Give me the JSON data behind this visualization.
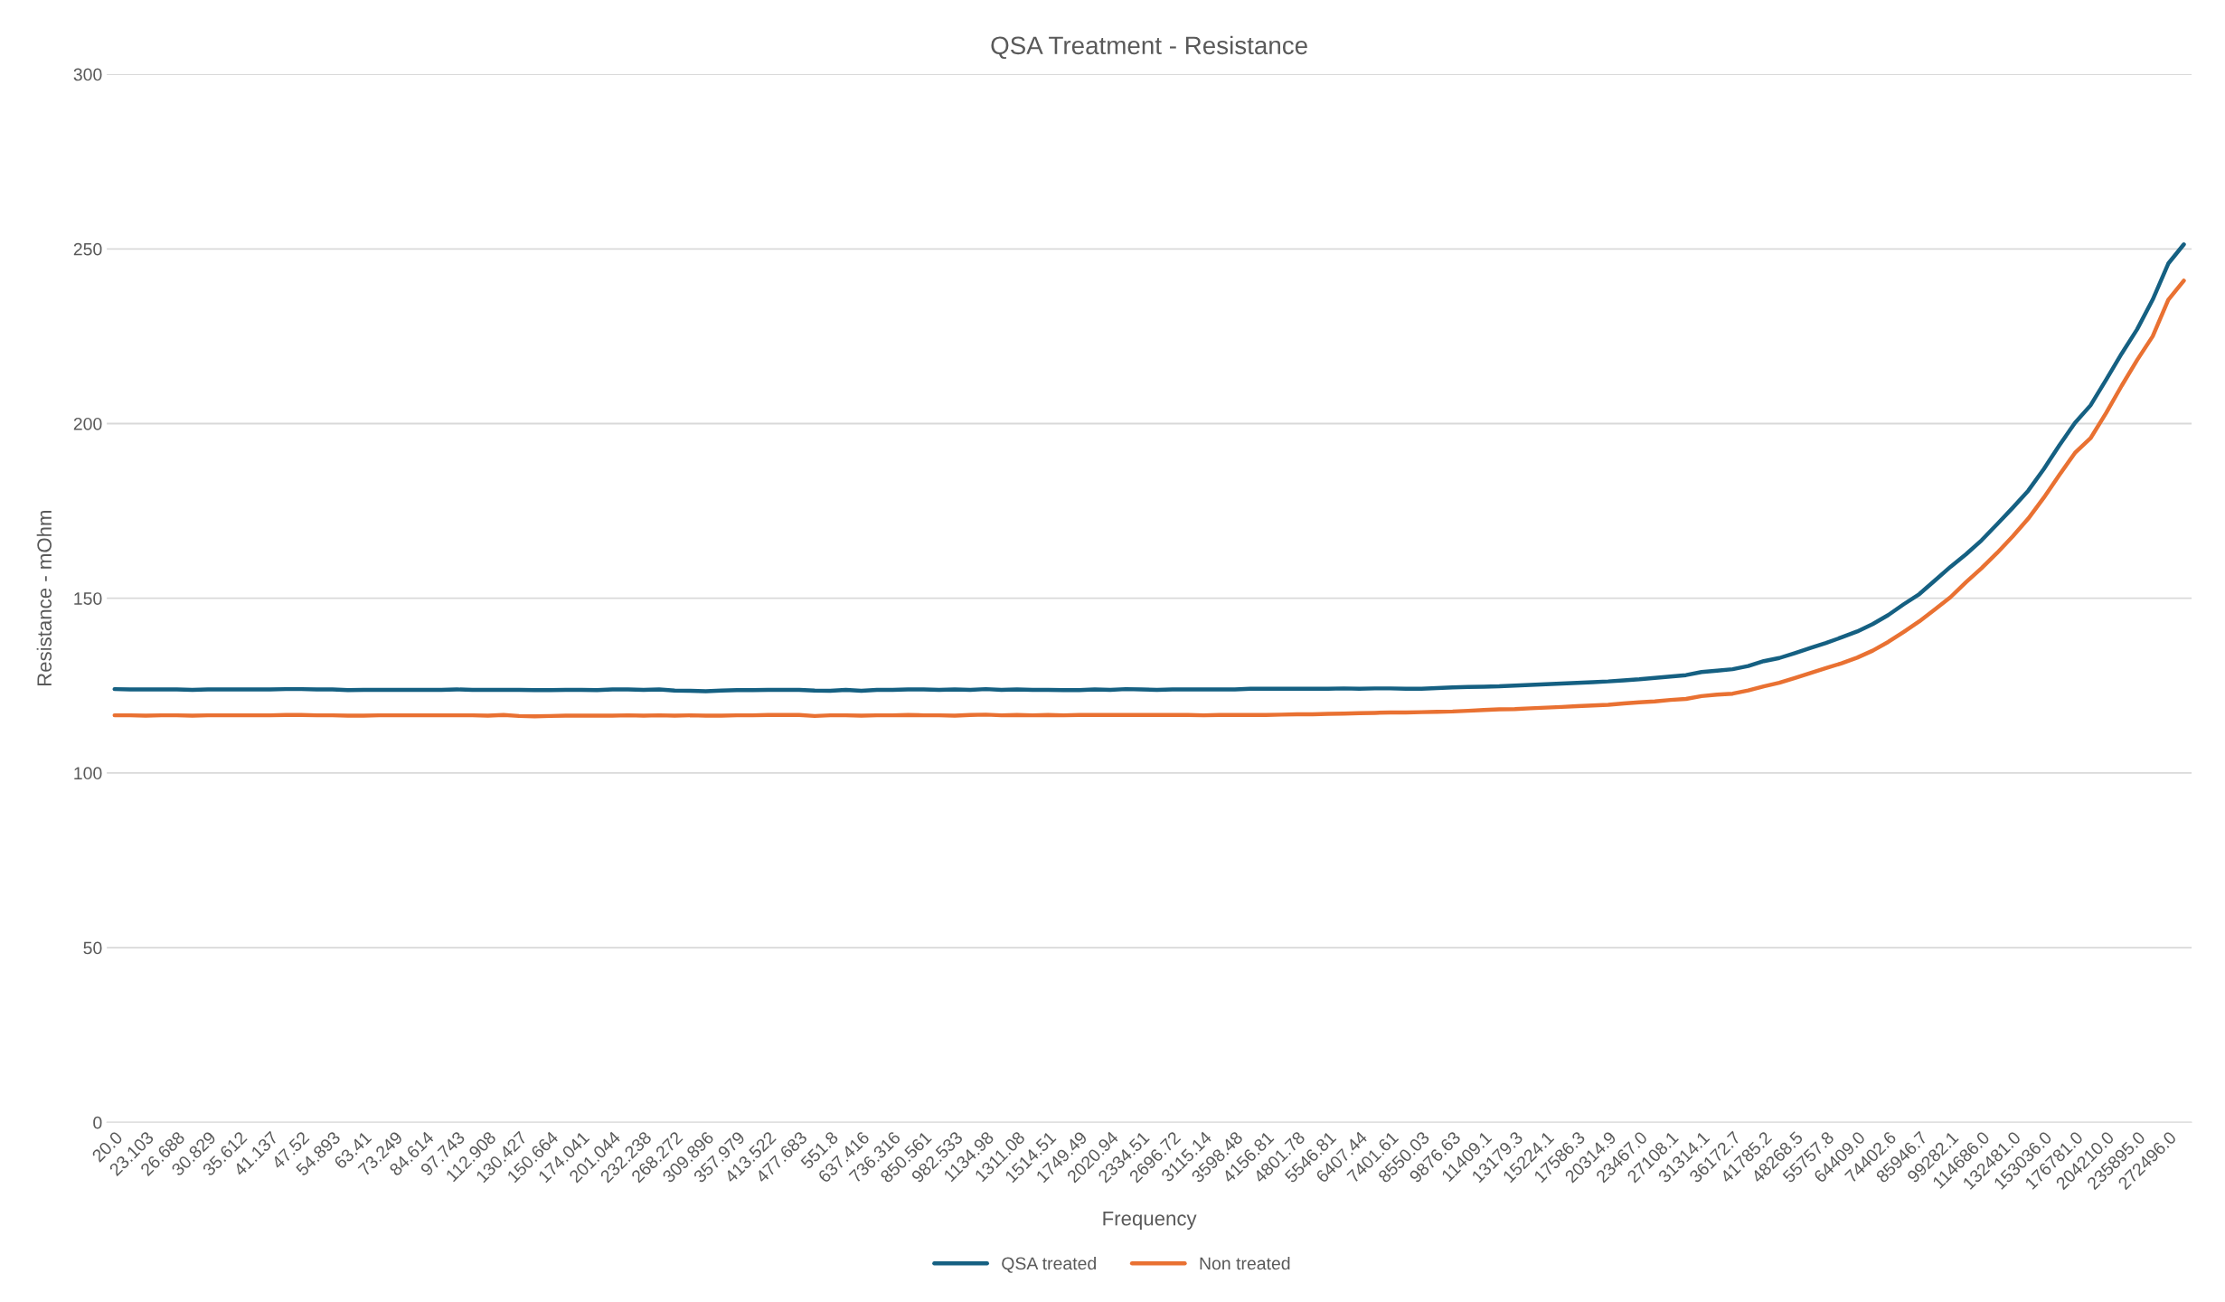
{
  "chart_data": {
    "type": "line",
    "title": "QSA Treatment - Resistance",
    "xlabel": "Frequency",
    "ylabel": "Resistance - mOhm",
    "categories": [
      "20.0",
      null,
      "23.103",
      null,
      "26.688",
      null,
      "30.829",
      null,
      "35.612",
      null,
      "41.137",
      null,
      "47.52",
      null,
      "54.893",
      null,
      "63.41",
      null,
      "73.249",
      null,
      "84.614",
      null,
      "97.743",
      null,
      "112.908",
      null,
      "130.427",
      null,
      "150.664",
      null,
      "174.041",
      null,
      "201.044",
      null,
      "232.238",
      null,
      "268.272",
      null,
      "309.896",
      null,
      "357.979",
      null,
      "413.522",
      null,
      "477.683",
      null,
      "551.8",
      null,
      "637.416",
      null,
      "736.316",
      null,
      "850.561",
      null,
      "982.533",
      null,
      "1134.98",
      null,
      "1311.08",
      null,
      "1514.51",
      null,
      "1749.49",
      null,
      "2020.94",
      null,
      "2334.51",
      null,
      "2696.72",
      null,
      "3115.14",
      null,
      "3598.48",
      null,
      "4156.81",
      null,
      "4801.78",
      null,
      "5546.81",
      null,
      "6407.44",
      null,
      "7401.61",
      null,
      "8550.03",
      null,
      "9876.63",
      null,
      "11409.1",
      null,
      "13179.3",
      null,
      "15224.1",
      null,
      "17586.3",
      null,
      "20314.9",
      null,
      "23467.0",
      null,
      "27108.1",
      null,
      "31314.1",
      null,
      "36172.7",
      null,
      "41785.2",
      null,
      "48268.5",
      null,
      "55757.8",
      null,
      "64409.0",
      null,
      "74402.6",
      null,
      "85946.7",
      null,
      "99282.1",
      null,
      "114686.0",
      null,
      "132481.0",
      null,
      "153036.0",
      null,
      "176781.0",
      null,
      "204210.0",
      null,
      "235895.0",
      null,
      "272496.0",
      null
    ],
    "series": [
      {
        "name": "QSA treated",
        "color": "#156082",
        "values": [
          124.0,
          123.9,
          123.9,
          123.9,
          123.9,
          123.8,
          123.9,
          123.9,
          123.9,
          123.9,
          123.9,
          124.0,
          124.0,
          123.9,
          123.9,
          123.7,
          123.8,
          123.8,
          123.8,
          123.8,
          123.8,
          123.8,
          123.9,
          123.8,
          123.8,
          123.8,
          123.8,
          123.7,
          123.7,
          123.8,
          123.8,
          123.7,
          123.9,
          123.9,
          123.8,
          123.9,
          123.6,
          123.5,
          123.4,
          123.6,
          123.7,
          123.7,
          123.8,
          123.8,
          123.8,
          123.6,
          123.5,
          123.8,
          123.5,
          123.8,
          123.8,
          123.9,
          123.9,
          123.8,
          123.9,
          123.8,
          124.0,
          123.8,
          123.9,
          123.8,
          123.8,
          123.7,
          123.7,
          123.9,
          123.8,
          124.0,
          123.9,
          123.8,
          123.9,
          123.9,
          123.9,
          123.9,
          123.9,
          124.1,
          124.1,
          124.1,
          124.1,
          124.1,
          124.1,
          124.2,
          124.1,
          124.2,
          124.2,
          124.1,
          124.1,
          124.3,
          124.5,
          124.6,
          124.7,
          124.8,
          125.0,
          125.2,
          125.4,
          125.6,
          125.8,
          126.0,
          126.2,
          126.5,
          126.8,
          127.2,
          127.6,
          128.0,
          128.9,
          129.3,
          129.7,
          130.6,
          132.0,
          132.9,
          134.3,
          135.8,
          137.2,
          138.8,
          140.5,
          142.6,
          145.2,
          148.3,
          151.2,
          155.1,
          159.0,
          162.6,
          166.6,
          171.2,
          175.9,
          180.8,
          187.0,
          193.8,
          200.2,
          205.2,
          212.5,
          220.0,
          227.0,
          235.5,
          245.8,
          251.3
        ]
      },
      {
        "name": "Non treated",
        "color": "#e97132",
        "values": [
          116.5,
          116.5,
          116.4,
          116.5,
          116.5,
          116.4,
          116.5,
          116.5,
          116.5,
          116.5,
          116.5,
          116.6,
          116.6,
          116.5,
          116.5,
          116.4,
          116.4,
          116.5,
          116.5,
          116.5,
          116.5,
          116.5,
          116.5,
          116.5,
          116.4,
          116.6,
          116.3,
          116.2,
          116.3,
          116.4,
          116.4,
          116.4,
          116.4,
          116.5,
          116.4,
          116.5,
          116.4,
          116.5,
          116.4,
          116.4,
          116.5,
          116.5,
          116.6,
          116.6,
          116.6,
          116.3,
          116.5,
          116.5,
          116.4,
          116.5,
          116.5,
          116.6,
          116.5,
          116.5,
          116.4,
          116.6,
          116.7,
          116.5,
          116.6,
          116.5,
          116.6,
          116.5,
          116.6,
          116.6,
          116.6,
          116.6,
          116.6,
          116.6,
          116.6,
          116.6,
          116.5,
          116.6,
          116.6,
          116.6,
          116.6,
          116.7,
          116.8,
          116.8,
          116.9,
          117.0,
          117.1,
          117.2,
          117.3,
          117.3,
          117.4,
          117.5,
          117.6,
          117.8,
          118.0,
          118.2,
          118.3,
          118.5,
          118.7,
          118.9,
          119.1,
          119.3,
          119.5,
          119.9,
          120.2,
          120.5,
          120.9,
          121.2,
          122.0,
          122.4,
          122.7,
          123.6,
          124.8,
          125.8,
          127.2,
          128.6,
          130.0,
          131.4,
          133.0,
          135.0,
          137.5,
          140.4,
          143.4,
          146.8,
          150.3,
          154.6,
          158.6,
          163.0,
          167.7,
          172.8,
          178.8,
          185.3,
          191.6,
          195.8,
          203.0,
          210.8,
          218.2,
          225.0,
          235.4,
          240.9
        ]
      }
    ],
    "ylim": [
      0,
      300
    ],
    "yticks": [
      0,
      50,
      100,
      150,
      200,
      250,
      300
    ],
    "grid": "y",
    "legend": "bottom",
    "marker": "none",
    "line_style": "solid"
  }
}
